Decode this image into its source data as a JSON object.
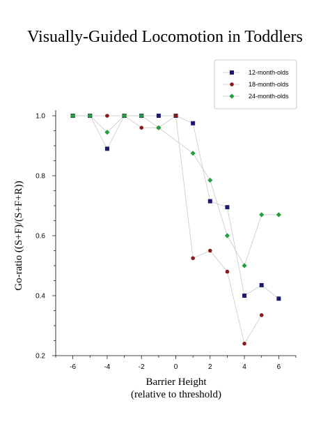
{
  "chart_data": {
    "type": "scatter",
    "title": "Visually-Guided Locomotion in Toddlers",
    "xlabel": [
      "Barrier Height",
      "(relative to threshold)"
    ],
    "ylabel": "Go-ratio ((S+F)/(S+F+R))",
    "xlim": [
      -7,
      7
    ],
    "ylim": [
      0.2,
      1.0
    ],
    "xticks": [
      -6,
      -4,
      -2,
      0,
      2,
      4,
      6
    ],
    "yticks": [
      0.2,
      0.4,
      0.6,
      0.8,
      1.0
    ],
    "xtick_labels": [
      "-6",
      "-4",
      "-2",
      "0",
      "2",
      "4",
      "6"
    ],
    "ytick_labels": [
      "0.2",
      "0.4",
      "0.6",
      "0.8",
      "1.0"
    ],
    "grid": false,
    "legend_position": "top-right",
    "series": [
      {
        "name": "12-month-olds",
        "marker": "square",
        "color": "#1a1a6e",
        "points": [
          [
            -6,
            1.0
          ],
          [
            -5,
            1.0
          ],
          [
            -4,
            0.89
          ],
          [
            -3,
            1.0
          ],
          [
            -2,
            1.0
          ],
          [
            -1,
            1.0
          ],
          [
            0,
            1.0
          ],
          [
            1,
            0.975
          ],
          [
            2,
            0.715
          ],
          [
            3,
            0.695
          ],
          [
            4,
            0.4
          ],
          [
            5,
            0.435
          ],
          [
            6,
            0.39
          ]
        ]
      },
      {
        "name": "18-month-olds",
        "marker": "circle",
        "color": "#8b1a1a",
        "points": [
          [
            -6,
            1.0
          ],
          [
            -5,
            1.0
          ],
          [
            -4,
            1.0
          ],
          [
            -3,
            1.0
          ],
          [
            -2,
            0.96
          ],
          [
            -1,
            0.96
          ],
          [
            0,
            1.0
          ],
          [
            1,
            0.525
          ],
          [
            2,
            0.55
          ],
          [
            3,
            0.48
          ],
          [
            4,
            0.24
          ],
          [
            5,
            0.335
          ]
        ]
      },
      {
        "name": "24-month-olds",
        "marker": "diamond",
        "color": "#22a03c",
        "points": [
          [
            -6,
            1.0
          ],
          [
            -5,
            1.0
          ],
          [
            -4,
            0.945
          ],
          [
            -3,
            1.0
          ],
          [
            -2,
            1.0
          ],
          [
            -1,
            0.96
          ],
          [
            1,
            0.875
          ],
          [
            2,
            0.785
          ],
          [
            3,
            0.6
          ],
          [
            4,
            0.5
          ],
          [
            5,
            0.67
          ],
          [
            6,
            0.67
          ]
        ]
      }
    ]
  }
}
